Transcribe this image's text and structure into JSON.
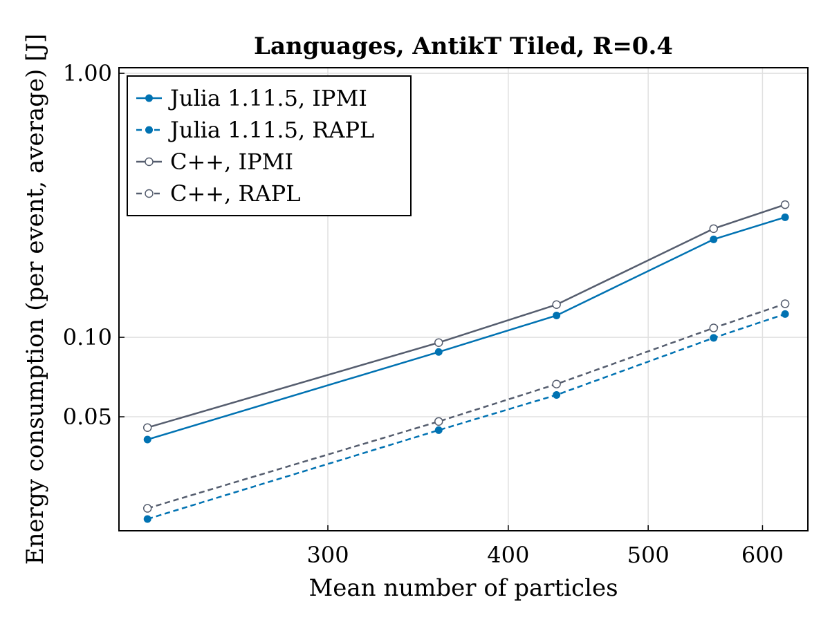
{
  "chart_data": {
    "type": "line",
    "title": "Languages, AntikT Tiled, R=0.4",
    "xlabel": "Mean number of particles",
    "ylabel": "Energy consumption (per event, average) [J]",
    "xscale": "log",
    "yscale": "log",
    "xlim": [
      215,
      645
    ],
    "ylim": [
      0.0185,
      1.05
    ],
    "xticks": [
      300,
      400,
      500,
      600
    ],
    "xtick_labels": [
      "300",
      "400",
      "500",
      "600"
    ],
    "yticks": [
      0.05,
      0.1,
      1.0
    ],
    "ytick_labels": [
      "0.05",
      "0.10",
      "1.00"
    ],
    "grid": true,
    "legend_position": "top-left",
    "x": [
      225,
      358,
      432,
      555,
      622
    ],
    "series": [
      {
        "name": "Julia 1.11.5, IPMI",
        "values": [
          0.041,
          0.088,
          0.121,
          0.235,
          0.285
        ],
        "color": "#0072b2",
        "dash": "solid",
        "marker": "filled"
      },
      {
        "name": "Julia 1.11.5, RAPL",
        "values": [
          0.0205,
          0.0445,
          0.0605,
          0.0995,
          0.1225
        ],
        "color": "#0072b2",
        "dash": "dashed",
        "marker": "filled"
      },
      {
        "name": "C++, IPMI",
        "values": [
          0.0455,
          0.0955,
          0.133,
          0.258,
          0.318
        ],
        "color": "#555d6e",
        "dash": "solid",
        "marker": "open"
      },
      {
        "name": "C++, RAPL",
        "values": [
          0.0225,
          0.048,
          0.0665,
          0.1085,
          0.134
        ],
        "color": "#555d6e",
        "dash": "dashed",
        "marker": "open"
      }
    ]
  }
}
